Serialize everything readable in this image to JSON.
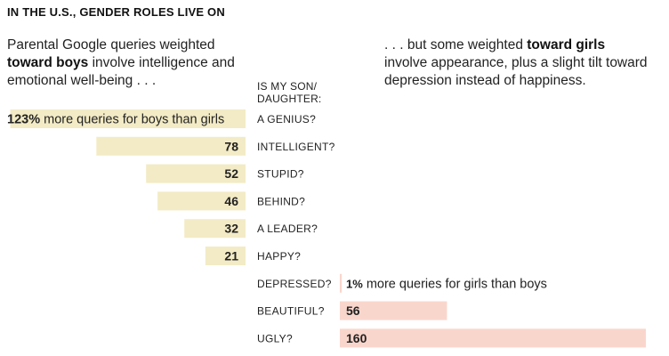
{
  "header": {
    "kicker": "IN THE U.S., GENDER ROLES LIVE ON",
    "left_intro": {
      "pre": "Parental Google queries weighted ",
      "bold": "toward boys",
      "post": " involve intelligence and emotional well-being . . ."
    },
    "right_intro": {
      "pre": ". . . but some weighted ",
      "bold": "toward girls",
      "post": " involve appearance, plus a slight tilt toward depression instead of happiness."
    },
    "column_head": [
      "IS MY SON/",
      "DAUGHTER:"
    ]
  },
  "chart_data": {
    "type": "bar",
    "unit": "%",
    "colors": {
      "boys": "#f3ebc5",
      "girls": "#f9d6cc"
    },
    "first_boys_label": "more queries for boys than girls",
    "first_girls_label": "more queries for girls than boys",
    "categories": [
      "A GENIUS?",
      "INTELLIGENT?",
      "STUPID?",
      "BEHIND?",
      "A LEADER?",
      "HAPPY?",
      "DEPRESSED?",
      "BEAUTIFUL?",
      "UGLY?"
    ],
    "rows": [
      {
        "category": "A GENIUS?",
        "direction": "boys",
        "value": 123
      },
      {
        "category": "INTELLIGENT?",
        "direction": "boys",
        "value": 78
      },
      {
        "category": "STUPID?",
        "direction": "boys",
        "value": 52
      },
      {
        "category": "BEHIND?",
        "direction": "boys",
        "value": 46
      },
      {
        "category": "A LEADER?",
        "direction": "boys",
        "value": 32
      },
      {
        "category": "HAPPY?",
        "direction": "boys",
        "value": 21
      },
      {
        "category": "DEPRESSED?",
        "direction": "girls",
        "value": 1
      },
      {
        "category": "BEAUTIFUL?",
        "direction": "girls",
        "value": 56
      },
      {
        "category": "UGLY?",
        "direction": "girls",
        "value": 160
      }
    ]
  }
}
